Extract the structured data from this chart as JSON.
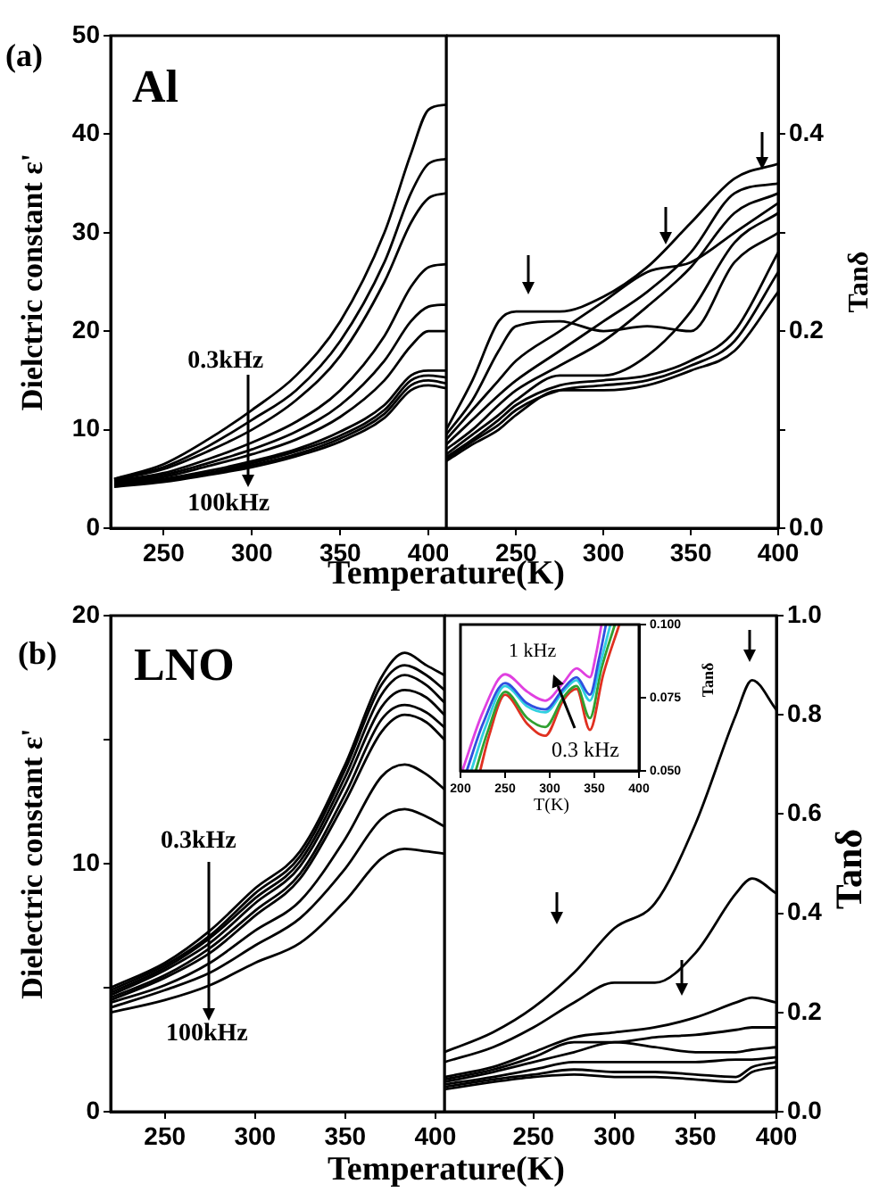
{
  "chart_data": [
    {
      "type": "line",
      "ylabel": "Dielctric constant ε'",
      "xlabel": "Temperature(K)",
      "annotations": [
        "(a)",
        "Al",
        {
          "text": "0.3kHz",
          "x": 300,
          "y": 12
        },
        {
          "text": "100kHz",
          "x": 300,
          "y": 6.2
        }
      ],
      "x": [
        222,
        250,
        275,
        300,
        325,
        350,
        375,
        390,
        400,
        410
      ],
      "xlim": [
        220,
        410
      ],
      "xticks": [
        250,
        300,
        350,
        400
      ],
      "ylim": [
        0,
        50
      ],
      "yticks": [
        0,
        10,
        20,
        30,
        40,
        50
      ],
      "series": [
        {
          "color": "#000000",
          "values": [
            5,
            6.5,
            9,
            12,
            15.5,
            21,
            30,
            38,
            42.5,
            43
          ]
        },
        {
          "color": "#000000",
          "values": [
            5,
            6.2,
            8.3,
            11,
            14,
            19,
            27,
            34,
            37,
            37.5
          ]
        },
        {
          "color": "#000000",
          "values": [
            4.9,
            6,
            7.8,
            10,
            13,
            17.5,
            25,
            31,
            33.5,
            34
          ]
        },
        {
          "color": "#000000",
          "values": [
            4.8,
            5.6,
            7,
            8.7,
            10.8,
            14,
            19.5,
            24.5,
            26.5,
            26.8
          ]
        },
        {
          "color": "#000000",
          "values": [
            4.7,
            5.4,
            6.6,
            8,
            9.8,
            12.5,
            17,
            21,
            22.5,
            22.7
          ]
        },
        {
          "color": "#000000",
          "values": [
            4.6,
            5.2,
            6.3,
            7.5,
            9,
            11.3,
            15,
            18.5,
            20,
            20
          ]
        },
        {
          "color": "#000000",
          "values": [
            4.5,
            5,
            5.8,
            6.8,
            8,
            9.8,
            12.5,
            15.5,
            16,
            16
          ]
        },
        {
          "color": "#000000",
          "values": [
            4.4,
            4.9,
            5.6,
            6.6,
            7.8,
            9.4,
            12,
            15,
            15.5,
            15.3
          ]
        },
        {
          "color": "#000000",
          "values": [
            4.3,
            4.8,
            5.5,
            6.4,
            7.5,
            9.1,
            11.6,
            14.5,
            15,
            14.7
          ]
        },
        {
          "color": "#000000",
          "values": [
            4.2,
            4.7,
            5.4,
            6.2,
            7.3,
            8.8,
            11.2,
            14,
            14.5,
            14.2
          ]
        }
      ]
    },
    {
      "type": "line",
      "ylabel": "Tanδ",
      "x": [
        210,
        225,
        240,
        250,
        275,
        300,
        325,
        350,
        375,
        400
      ],
      "xlim": [
        210,
        400
      ],
      "xticks": [
        250,
        300,
        350,
        400
      ],
      "ylim": [
        0,
        0.5
      ],
      "yticks": [
        {
          "value": 0,
          "label": "0.0"
        },
        {
          "value": 0.1,
          "label": null
        },
        0.2,
        {
          "value": 0.3,
          "label": null
        },
        0.4
      ],
      "series": [
        {
          "color": "#000000",
          "values": [
            0.1,
            0.15,
            0.21,
            0.22,
            0.22,
            0.235,
            0.265,
            0.31,
            0.355,
            0.37
          ]
        },
        {
          "color": "#000000",
          "values": [
            0.095,
            0.13,
            0.18,
            0.205,
            0.21,
            0.2,
            0.205,
            0.2,
            0.27,
            0.3
          ]
        },
        {
          "color": "#000000",
          "values": [
            0.09,
            0.12,
            0.15,
            0.17,
            0.2,
            0.23,
            0.26,
            0.27,
            0.3,
            0.33
          ]
        },
        {
          "color": "#000000",
          "values": [
            0.085,
            0.11,
            0.135,
            0.15,
            0.18,
            0.21,
            0.24,
            0.28,
            0.34,
            0.35
          ]
        },
        {
          "color": "#000000",
          "values": [
            0.08,
            0.1,
            0.125,
            0.14,
            0.165,
            0.19,
            0.225,
            0.265,
            0.32,
            0.34
          ]
        },
        {
          "color": "#000000",
          "values": [
            0.075,
            0.095,
            0.115,
            0.13,
            0.155,
            0.155,
            0.175,
            0.22,
            0.29,
            0.32
          ]
        },
        {
          "color": "#000000",
          "values": [
            0.072,
            0.09,
            0.11,
            0.125,
            0.145,
            0.15,
            0.155,
            0.17,
            0.2,
            0.28
          ]
        },
        {
          "color": "#000000",
          "values": [
            0.07,
            0.088,
            0.105,
            0.12,
            0.14,
            0.145,
            0.15,
            0.165,
            0.19,
            0.26
          ]
        },
        {
          "color": "#000000",
          "values": [
            0.068,
            0.085,
            0.1,
            0.115,
            0.14,
            0.14,
            0.145,
            0.16,
            0.18,
            0.24
          ]
        }
      ]
    },
    {
      "type": "line",
      "ylabel": "Dielectric constant ε'",
      "xlabel": "Temperature(K)",
      "annotations": [
        "(b)",
        "LNO",
        "0.3kHz",
        "100kHz"
      ],
      "x": [
        220,
        250,
        275,
        300,
        325,
        350,
        370,
        383,
        395,
        405
      ],
      "xlim": [
        220,
        405
      ],
      "xticks": [
        250,
        300,
        350,
        400
      ],
      "ylim": [
        0,
        20
      ],
      "yticks": [
        0,
        {
          "value": 5,
          "label": null
        },
        10,
        {
          "value": 15,
          "label": null
        },
        20
      ],
      "series": [
        {
          "color": "#000000",
          "values": [
            5,
            6,
            7.3,
            9,
            10.5,
            14,
            17.5,
            18.5,
            18,
            17.6
          ]
        },
        {
          "color": "#000000",
          "values": [
            4.9,
            5.9,
            7.1,
            8.8,
            10.3,
            13.8,
            17.2,
            18,
            17.6,
            17
          ]
        },
        {
          "color": "#000000",
          "values": [
            4.8,
            5.8,
            7,
            8.6,
            10.1,
            13.5,
            16.8,
            17.6,
            17.2,
            16.5
          ]
        },
        {
          "color": "#000000",
          "values": [
            4.7,
            5.7,
            6.8,
            8.4,
            9.9,
            13.2,
            16.3,
            17,
            16.7,
            16
          ]
        },
        {
          "color": "#000000",
          "values": [
            4.6,
            5.5,
            6.6,
            8.1,
            9.6,
            12.8,
            15.8,
            16.4,
            16.1,
            15.5
          ]
        },
        {
          "color": "#000000",
          "values": [
            4.5,
            5.4,
            6.4,
            7.9,
            9.4,
            12.5,
            15.3,
            16,
            15.7,
            15
          ]
        },
        {
          "color": "#000000",
          "values": [
            4.4,
            5.1,
            6,
            7.3,
            8.5,
            11,
            13.5,
            14,
            13.6,
            13
          ]
        },
        {
          "color": "#000000",
          "values": [
            4.2,
            4.9,
            5.6,
            6.7,
            7.8,
            9.8,
            11.8,
            12.2,
            11.9,
            11.5
          ]
        },
        {
          "color": "#000000",
          "values": [
            4,
            4.5,
            5.1,
            6,
            6.8,
            8.5,
            10.2,
            10.6,
            10.5,
            10.4
          ]
        }
      ]
    },
    {
      "type": "line",
      "ylabel": "Tanδ",
      "x": [
        195,
        225,
        250,
        275,
        300,
        325,
        350,
        375,
        385,
        400
      ],
      "xlim": [
        195,
        400
      ],
      "xticks": [
        250,
        300,
        350,
        400
      ],
      "ylim": [
        0,
        1
      ],
      "yticks": [
        {
          "value": 0,
          "label": "0.0"
        },
        0.2,
        0.4,
        0.6,
        0.8,
        {
          "value": 1,
          "label": "1.0"
        }
      ],
      "series": [
        {
          "color": "#000000",
          "values": [
            0.12,
            0.16,
            0.21,
            0.28,
            0.37,
            0.42,
            0.58,
            0.8,
            0.87,
            0.81
          ]
        },
        {
          "color": "#000000",
          "values": [
            0.1,
            0.13,
            0.17,
            0.22,
            0.26,
            0.26,
            0.32,
            0.44,
            0.47,
            0.44
          ]
        },
        {
          "color": "#000000",
          "values": [
            0.07,
            0.09,
            0.12,
            0.15,
            0.16,
            0.17,
            0.19,
            0.22,
            0.23,
            0.22
          ]
        },
        {
          "color": "#000000",
          "values": [
            0.065,
            0.085,
            0.11,
            0.14,
            0.14,
            0.15,
            0.155,
            0.165,
            0.17,
            0.17
          ]
        },
        {
          "color": "#000000",
          "values": [
            0.06,
            0.08,
            0.1,
            0.12,
            0.14,
            0.13,
            0.12,
            0.12,
            0.125,
            0.13
          ]
        },
        {
          "color": "#000000",
          "values": [
            0.055,
            0.07,
            0.085,
            0.1,
            0.1,
            0.1,
            0.1,
            0.105,
            0.105,
            0.11
          ]
        },
        {
          "color": "#000000",
          "values": [
            0.05,
            0.065,
            0.075,
            0.085,
            0.08,
            0.08,
            0.075,
            0.07,
            0.09,
            0.1
          ]
        },
        {
          "color": "#000000",
          "values": [
            0.045,
            0.06,
            0.07,
            0.075,
            0.07,
            0.07,
            0.065,
            0.06,
            0.08,
            0.09
          ]
        }
      ]
    },
    {
      "type": "line",
      "ylabel": "Tanδ",
      "xlabel": "T(K)",
      "annotations": [
        "1 kHz",
        "0.3 kHz"
      ],
      "xlim": [
        200,
        400
      ],
      "xticks": [
        200,
        250,
        300,
        350,
        400
      ],
      "ylim": [
        0.05,
        0.1
      ],
      "yticks": [
        {
          "value": 0.05,
          "label": "0.050"
        },
        0.075,
        {
          "value": 0.1,
          "label": "0.100"
        }
      ],
      "series": [
        {
          "color": "#e040e0",
          "x": [
            202,
            225,
            250,
            275,
            295,
            315,
            330,
            345,
            352,
            358
          ],
          "values": [
            0.05,
            0.07,
            0.083,
            0.077,
            0.074,
            0.08,
            0.085,
            0.082,
            0.09,
            0.1
          ]
        },
        {
          "color": "#3050e0",
          "x": [
            207,
            225,
            250,
            275,
            295,
            315,
            330,
            345,
            355,
            363
          ],
          "values": [
            0.05,
            0.066,
            0.08,
            0.073,
            0.071,
            0.078,
            0.082,
            0.076,
            0.088,
            0.1
          ]
        },
        {
          "color": "#30d0e0",
          "x": [
            212,
            228,
            250,
            275,
            295,
            315,
            330,
            345,
            357,
            368
          ],
          "values": [
            0.05,
            0.065,
            0.079,
            0.072,
            0.07,
            0.077,
            0.081,
            0.074,
            0.087,
            0.1
          ]
        },
        {
          "color": "#30a030",
          "x": [
            217,
            230,
            250,
            275,
            295,
            315,
            330,
            345,
            358,
            373
          ],
          "values": [
            0.05,
            0.063,
            0.077,
            0.068,
            0.065,
            0.075,
            0.079,
            0.068,
            0.085,
            0.1
          ]
        },
        {
          "color": "#e03020",
          "x": [
            222,
            232,
            250,
            275,
            295,
            315,
            330,
            345,
            360,
            378
          ],
          "values": [
            0.05,
            0.062,
            0.076,
            0.066,
            0.062,
            0.074,
            0.078,
            0.064,
            0.083,
            0.1
          ]
        }
      ]
    }
  ]
}
